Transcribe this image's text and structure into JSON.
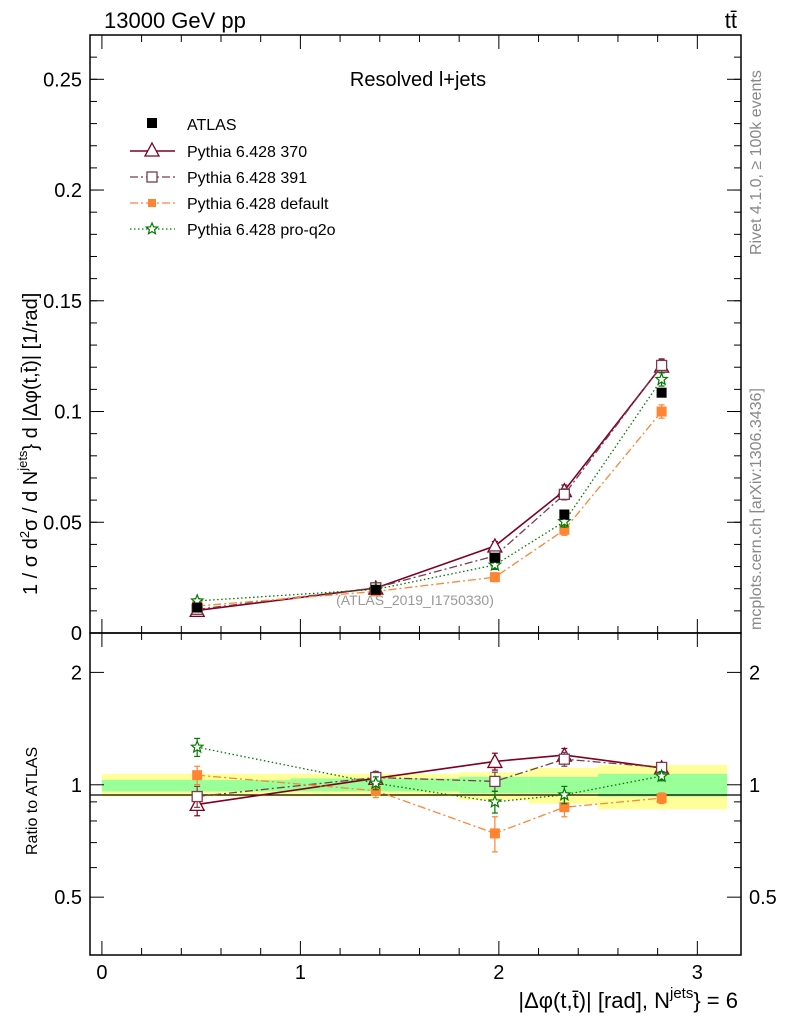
{
  "header": {
    "energy_label": "13000 GeV pp",
    "process_label": "tt̄"
  },
  "side_labels": {
    "rivet": "Rivet 4.1.0, ≥ 100k events",
    "mcplots": "mcplots.cern.ch [arXiv:1306.3436]"
  },
  "chart_data": [
    {
      "type": "line",
      "panel": "main",
      "title": "Resolved l+jets",
      "watermark": "(ATLAS_2019_I1750330)",
      "ylabel_parts": [
        "1 / σ d",
        "2",
        "σ / d N",
        "jets",
        "} d |Δφ(t,t̄)| [1/rad]"
      ],
      "ylim": [
        0,
        0.27
      ],
      "yticks": [
        {
          "value": 0,
          "label": "0"
        },
        {
          "value": 0.05,
          "label": "0.05"
        },
        {
          "value": 0.1,
          "label": "0.1"
        },
        {
          "value": 0.15,
          "label": "0.15"
        },
        {
          "value": 0.2,
          "label": "0.2"
        },
        {
          "value": 0.25,
          "label": "0.25"
        }
      ],
      "xlim": [
        -0.06,
        3.22
      ],
      "x": [
        0.48,
        1.38,
        1.98,
        2.33,
        2.82
      ],
      "series": [
        {
          "name": "ATLAS",
          "style": "data",
          "color": "#000000",
          "marker": "square-filled",
          "values": [
            0.0115,
            0.0195,
            0.034,
            0.0535,
            0.1085
          ],
          "errors": [
            0.0005,
            0.0005,
            0.001,
            0.0012,
            0.0015
          ]
        },
        {
          "name": "Pythia 6.428 370",
          "style": "solid",
          "color": "#800020",
          "marker": "triangle-open",
          "values": [
            0.0102,
            0.0203,
            0.0393,
            0.0643,
            0.1205
          ],
          "errors": [
            0.001,
            0.001,
            0.002,
            0.0025,
            0.003
          ]
        },
        {
          "name": "Pythia 6.428 391",
          "style": "dashdot",
          "color": "#7a3b4e",
          "marker": "square-open",
          "values": [
            0.0107,
            0.0204,
            0.0348,
            0.0626,
            0.1208
          ],
          "errors": [
            0.001,
            0.001,
            0.002,
            0.0025,
            0.003
          ]
        },
        {
          "name": "Pythia 6.428 default",
          "style": "dashdot",
          "color": "#ff8533",
          "marker": "square-filled",
          "values": [
            0.0122,
            0.0188,
            0.0252,
            0.0466,
            0.1
          ],
          "errors": [
            0.001,
            0.001,
            0.002,
            0.0025,
            0.003
          ]
        },
        {
          "name": "Pythia 6.428 pro-q2o",
          "style": "dotted",
          "color": "#007a00",
          "marker": "star-open",
          "values": [
            0.0145,
            0.0197,
            0.0307,
            0.0503,
            0.1145
          ],
          "errors": [
            0.001,
            0.001,
            0.002,
            0.0025,
            0.003
          ]
        }
      ]
    },
    {
      "type": "line",
      "panel": "ratio",
      "ylabel": "Ratio to ATLAS",
      "ylim": [
        0.35,
        2.55
      ],
      "yticks": [
        {
          "value": 0.5,
          "label": "0.5"
        },
        {
          "value": 1,
          "label": "1"
        },
        {
          "value": 2,
          "label": "2"
        }
      ],
      "xlabel_parts": [
        "|Δφ(t,t̄)| [rad], N",
        "jets",
        "} = 6"
      ],
      "xticks": [
        {
          "value": 0,
          "label": "0"
        },
        {
          "value": 1,
          "label": "1"
        },
        {
          "value": 2,
          "label": "2"
        },
        {
          "value": 3,
          "label": "3"
        }
      ],
      "bands": [
        {
          "x0": 0.0,
          "x1": 0.95,
          "yellow": [
            0.93,
            1.07
          ],
          "green": [
            0.96,
            1.03
          ]
        },
        {
          "x0": 0.95,
          "x1": 1.8,
          "yellow": [
            0.93,
            1.07
          ],
          "green": [
            0.96,
            1.04
          ]
        },
        {
          "x0": 1.8,
          "x1": 2.15,
          "yellow": [
            0.91,
            1.08
          ],
          "green": [
            0.95,
            1.05
          ]
        },
        {
          "x0": 2.15,
          "x1": 2.5,
          "yellow": [
            0.89,
            1.11
          ],
          "green": [
            0.95,
            1.05
          ]
        },
        {
          "x0": 2.5,
          "x1": 3.15,
          "yellow": [
            0.86,
            1.13
          ],
          "green": [
            0.93,
            1.07
          ]
        }
      ],
      "x": [
        0.48,
        1.38,
        1.98,
        2.33,
        2.82
      ],
      "series": [
        {
          "name": "Pythia 6.428 370",
          "values": [
            0.886,
            1.041,
            1.155,
            1.201,
            1.11
          ],
          "errors": [
            0.06,
            0.04,
            0.06,
            0.05,
            0.03
          ]
        },
        {
          "name": "Pythia 6.428 391",
          "values": [
            0.93,
            1.046,
            1.021,
            1.171,
            1.113
          ],
          "errors": [
            0.06,
            0.04,
            0.06,
            0.05,
            0.03
          ]
        },
        {
          "name": "Pythia 6.428 default",
          "values": [
            1.061,
            0.964,
            0.741,
            0.871,
            0.921
          ],
          "errors": [
            0.06,
            0.04,
            0.08,
            0.05,
            0.03
          ]
        },
        {
          "name": "Pythia 6.428 pro-q2o",
          "values": [
            1.261,
            1.01,
            0.9,
            0.94,
            1.055
          ],
          "errors": [
            0.07,
            0.04,
            0.06,
            0.05,
            0.03
          ]
        }
      ]
    }
  ]
}
